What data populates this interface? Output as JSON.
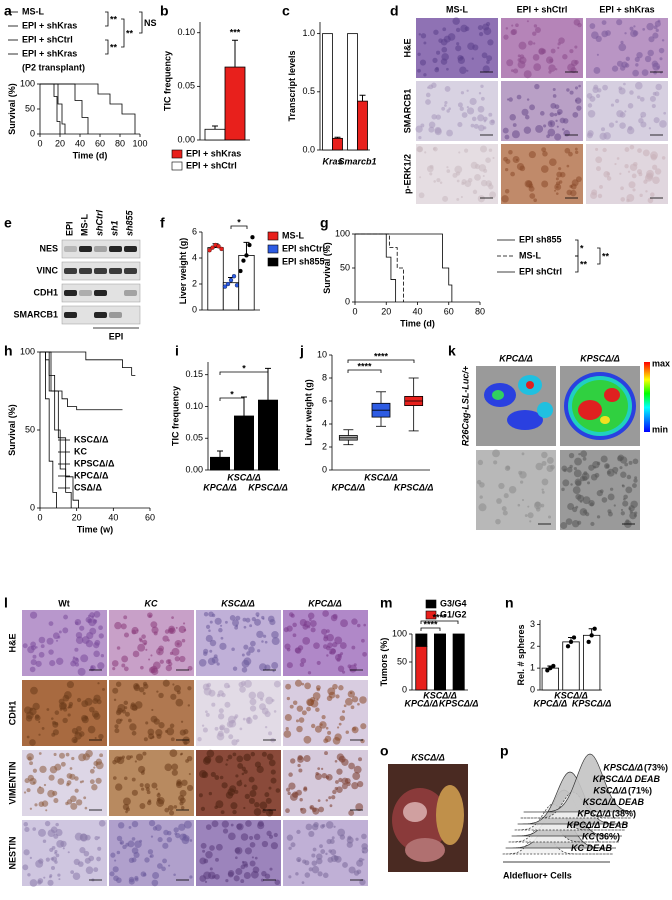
{
  "chart_data": [
    {
      "letter": "a",
      "type": "line",
      "step": true,
      "ylabel": "Survival (%)",
      "xlabel": "Time (d)",
      "xlim": [
        0,
        100
      ],
      "ylim": [
        0,
        100
      ],
      "xticks": [
        0,
        20,
        40,
        60,
        80,
        100
      ],
      "yticks": [
        0,
        50,
        100
      ],
      "series": [
        {
          "name": "MS-L",
          "color": "#000000",
          "x": [
            0,
            14,
            14,
            17,
            17,
            20,
            20
          ],
          "values": [
            100,
            100,
            75,
            75,
            25,
            25,
            0
          ]
        },
        {
          "name": "EPI + shKras",
          "color": "#2e9e2e",
          "x": [
            0,
            58,
            58,
            70,
            70,
            82,
            82,
            95,
            95
          ],
          "values": [
            100,
            100,
            80,
            80,
            60,
            60,
            40,
            40,
            0
          ]
        },
        {
          "name": "EPI + shCtrl",
          "color": "#2d5be3",
          "x": [
            0,
            35,
            35,
            42,
            42,
            48,
            48
          ],
          "values": [
            100,
            100,
            67,
            67,
            33,
            33,
            0
          ]
        },
        {
          "name": "EPI + shKras",
          "color": "#e8201c",
          "x": [
            0,
            18,
            18,
            22,
            22,
            25,
            25
          ],
          "values": [
            100,
            100,
            60,
            60,
            20,
            20,
            0
          ]
        }
      ],
      "note": "(P2 transplant)",
      "significance": [
        "**",
        "**",
        "**",
        "NS"
      ]
    },
    {
      "letter": "b",
      "type": "bar",
      "ylabel": "TIC frequency",
      "ylim": [
        0,
        0.11
      ],
      "yticks": [
        {
          "value": 0,
          "label": "0.00"
        },
        {
          "value": 0.05,
          "label": "0.05"
        },
        {
          "value": 0.1,
          "label": "0.10"
        }
      ],
      "series": [
        {
          "name": "EPI + shCtrl",
          "color": "#ffffff",
          "values": [
            0.01
          ],
          "errors": [
            0.003
          ]
        },
        {
          "name": "EPI + shKras",
          "color": "#e8201c",
          "values": [
            0.068
          ],
          "errors": [
            0.025
          ]
        }
      ],
      "significance": [
        "***"
      ]
    },
    {
      "letter": "c",
      "type": "bar",
      "ylabel": "Transcript levels",
      "ylim": [
        0,
        1.1
      ],
      "yticks": [
        {
          "value": 0,
          "label": "0.0"
        },
        {
          "value": 0.5,
          "label": "0.5"
        },
        {
          "value": 1,
          "label": "1.0"
        }
      ],
      "categories": [
        "Kras",
        "Smarcb1"
      ],
      "series": [
        {
          "color": "#ffffff",
          "values": [
            1,
            1
          ]
        },
        {
          "color": "#e8201c",
          "values": [
            0.1,
            0.42
          ],
          "errors": [
            0.01,
            0.05
          ]
        }
      ]
    },
    {
      "letter": "f",
      "type": "bar",
      "ylabel": "Liver weight (g)",
      "ylim": [
        0,
        6
      ],
      "yticks": [
        0,
        2,
        4,
        6
      ],
      "bar_fill": "#ffffff",
      "series": [
        {
          "name": "MS-L",
          "color": "#e8201c",
          "values": [
            4.8
          ],
          "errors": [
            0.3
          ],
          "points": [
            [
              4.6,
              4.8,
              5.0,
              4.9,
              4.7
            ]
          ]
        },
        {
          "name": "EPI shCtrl",
          "color": "#2d5be3",
          "values": [
            2.1
          ],
          "errors": [
            0.4
          ],
          "points": [
            [
              1.8,
              2.0,
              2.3,
              2.6,
              1.9
            ]
          ]
        },
        {
          "name": "EPI sh855",
          "color": "#000000",
          "values": [
            4.2
          ],
          "errors": [
            1.0
          ],
          "points": [
            [
              3.0,
              3.8,
              4.2,
              5.0,
              5.6
            ]
          ]
        }
      ],
      "significance": [
        "*"
      ]
    },
    {
      "letter": "g",
      "type": "line",
      "step": true,
      "ylabel": "Survival (%)",
      "xlabel": "Time (d)",
      "xlim": [
        0,
        80
      ],
      "ylim": [
        0,
        100
      ],
      "xticks": [
        0,
        20,
        40,
        60,
        80
      ],
      "yticks": [
        0,
        50,
        100
      ],
      "series": [
        {
          "name": "EPI sh855",
          "color": "#000000",
          "x": [
            0,
            20,
            20,
            23,
            23,
            26,
            26
          ],
          "values": [
            100,
            100,
            66,
            66,
            33,
            33,
            0
          ]
        },
        {
          "name": "MS-L",
          "color": "#e8201c",
          "dash": true,
          "x": [
            0,
            22,
            22,
            27,
            27,
            31,
            31
          ],
          "values": [
            100,
            100,
            80,
            80,
            50,
            50,
            0
          ]
        },
        {
          "name": "EPI shCtrl",
          "color": "#e8201c",
          "x": [
            0,
            56,
            56,
            60,
            60,
            62,
            62
          ],
          "values": [
            100,
            100,
            50,
            50,
            25,
            25,
            0
          ]
        }
      ],
      "significance": [
        "*",
        "**",
        "**"
      ]
    },
    {
      "letter": "h",
      "type": "line",
      "step": true,
      "ylabel": "Survival (%)",
      "xlabel": "Time (w)",
      "xlim": [
        0,
        60
      ],
      "ylim": [
        0,
        100
      ],
      "xticks": [
        0,
        20,
        40,
        60
      ],
      "yticks": [
        0,
        50,
        100
      ],
      "series": [
        {
          "name": "KSCΔ/Δ",
          "color": "#e8201c",
          "x": [
            0,
            5,
            5,
            8,
            8,
            11,
            11,
            14,
            14,
            17,
            17
          ],
          "values": [
            100,
            100,
            75,
            75,
            50,
            50,
            25,
            25,
            10,
            10,
            0
          ]
        },
        {
          "name": "KC",
          "color": "#f08a00",
          "x": [
            0,
            25,
            25,
            45,
            45,
            50,
            50,
            52
          ],
          "values": [
            100,
            100,
            95,
            95,
            90,
            90,
            85,
            85
          ]
        },
        {
          "name": "KPSCΔ/Δ",
          "color": "#2e9e2e",
          "x": [
            0,
            3,
            3,
            5,
            5,
            7,
            7,
            9,
            9
          ],
          "values": [
            100,
            100,
            70,
            70,
            30,
            30,
            10,
            10,
            0
          ]
        },
        {
          "name": "KPCΔ/Δ",
          "color": "#2d5be3",
          "x": [
            0,
            6,
            6,
            10,
            10,
            14,
            14,
            18,
            18,
            21,
            21
          ],
          "values": [
            100,
            100,
            75,
            75,
            45,
            45,
            20,
            20,
            5,
            5,
            0
          ]
        },
        {
          "name": "CSΔ/Δ",
          "color": "#000000",
          "x": [
            0,
            3,
            3,
            5,
            5,
            8,
            8,
            12,
            12,
            15,
            15,
            20,
            20,
            45
          ],
          "values": [
            100,
            100,
            95,
            95,
            85,
            85,
            75,
            75,
            70,
            70,
            65,
            65,
            63,
            63
          ]
        }
      ]
    },
    {
      "letter": "i",
      "type": "bar",
      "ylabel": "TIC frequency",
      "ylim": [
        0,
        0.17
      ],
      "yticks": [
        {
          "value": 0,
          "label": "0.00"
        },
        {
          "value": 0.05,
          "label": "0.05"
        },
        {
          "value": 0.1,
          "label": "0.10"
        },
        {
          "value": 0.15,
          "label": "0.15"
        }
      ],
      "categories": [
        "KPCΔ/Δ",
        "KSCΔ/Δ",
        "KPSCΔ/Δ"
      ],
      "series": [
        {
          "color": "#000000",
          "values": [
            0.02,
            0.085,
            0.11
          ],
          "errors": [
            0.01,
            0.03,
            0.05
          ]
        }
      ],
      "significance": [
        "*",
        "*"
      ]
    },
    {
      "letter": "j",
      "type": "box",
      "ylabel": "Liver weight (g)",
      "ylim": [
        0,
        10
      ],
      "yticks": [
        0,
        2,
        4,
        6,
        8,
        10
      ],
      "categories": [
        "KPCΔ/Δ",
        "KSCΔ/Δ",
        "KPSCΔ/Δ"
      ],
      "boxes": [
        {
          "color": "#b0b0b0",
          "min": 2.2,
          "q1": 2.6,
          "median": 2.8,
          "q3": 3.0,
          "max": 3.5
        },
        {
          "color": "#2d5be3",
          "min": 3.8,
          "q1": 4.6,
          "median": 5.2,
          "q3": 5.8,
          "max": 6.8
        },
        {
          "color": "#e8201c",
          "min": 3.4,
          "q1": 5.6,
          "median": 6.0,
          "q3": 6.4,
          "max": 8.0
        }
      ],
      "significance": [
        "****",
        "****"
      ]
    },
    {
      "letter": "m",
      "type": "bar",
      "stacked": true,
      "ylabel": "Tumors (%)",
      "ylim": [
        0,
        100
      ],
      "yticks": [
        0,
        50,
        100
      ],
      "categories": [
        "KPCΔ/Δ",
        "KSCΔ/Δ",
        "KPSCΔ/Δ"
      ],
      "series": [
        {
          "name": "G3/G4",
          "color": "#000000",
          "values": [
            22,
            100,
            100
          ]
        },
        {
          "name": "G1/G2",
          "color": "#e8201c",
          "values": [
            78,
            0,
            0
          ]
        }
      ],
      "significance": [
        "****",
        "****"
      ]
    },
    {
      "letter": "n",
      "type": "bar",
      "ylabel": "Rel. # spheres",
      "ylim": [
        0,
        3.2
      ],
      "yticks": [
        0,
        1,
        2,
        3
      ],
      "bar_fill": "#ffffff",
      "categories": [
        "KPCΔ/Δ",
        "KSCΔ/Δ",
        "KPSCΔ/Δ"
      ],
      "series": [
        {
          "color": "#000000",
          "values": [
            1.0,
            2.2,
            2.5
          ],
          "errors": [
            0.1,
            0.2,
            0.3
          ],
          "points": [
            [
              0.9,
              1.0,
              1.1
            ],
            [
              2.0,
              2.2,
              2.4
            ],
            [
              2.2,
              2.5,
              2.8
            ]
          ]
        }
      ]
    }
  ],
  "figure": {
    "d": {
      "letter": "d",
      "columns": [
        "MS-L",
        "EPI + shCtrl",
        "EPI + shKras"
      ],
      "rows": [
        "H&E",
        "SMARCB1",
        "p-ERK1/2"
      ]
    },
    "e": {
      "letter": "e",
      "lanes": [
        "EPI",
        "MS-L",
        "shCtrl",
        "sh1",
        "sh855"
      ],
      "rows": [
        "NES",
        "VINC",
        "CDH1",
        "SMARCB1"
      ],
      "group": "EPI"
    },
    "k": {
      "letter": "k",
      "columns": [
        "KPCΔ/Δ",
        "KPSCΔ/Δ"
      ],
      "row_label": "R26Cag-LSL-Luc/+",
      "scale_max": "max",
      "scale_min": "min"
    },
    "l": {
      "letter": "l",
      "columns": [
        "Wt",
        "KC",
        "KSCΔ/Δ",
        "KPCΔ/Δ"
      ],
      "rows": [
        "H&E",
        "CDH1",
        "VIMENTIN",
        "NESTIN"
      ]
    },
    "o": {
      "letter": "o",
      "label": "KSCΔ/Δ"
    },
    "p": {
      "letter": "p",
      "xlabel": "Aldefluor+ Cells",
      "entries": [
        {
          "name": "KPSCΔ/Δ",
          "percent": "(73%)"
        },
        {
          "name": "KPSCΔ/Δ DEAB"
        },
        {
          "name": "KSCΔ/Δ",
          "percent": "(71%)"
        },
        {
          "name": "KSCΔ/Δ DEAB"
        },
        {
          "name": "KPCΔ/Δ",
          "percent": "(38%)"
        },
        {
          "name": "KPCΔ/Δ DEAB"
        },
        {
          "name": "KC",
          "percent": "(36%)"
        },
        {
          "name": "KC DEAB"
        }
      ]
    }
  }
}
